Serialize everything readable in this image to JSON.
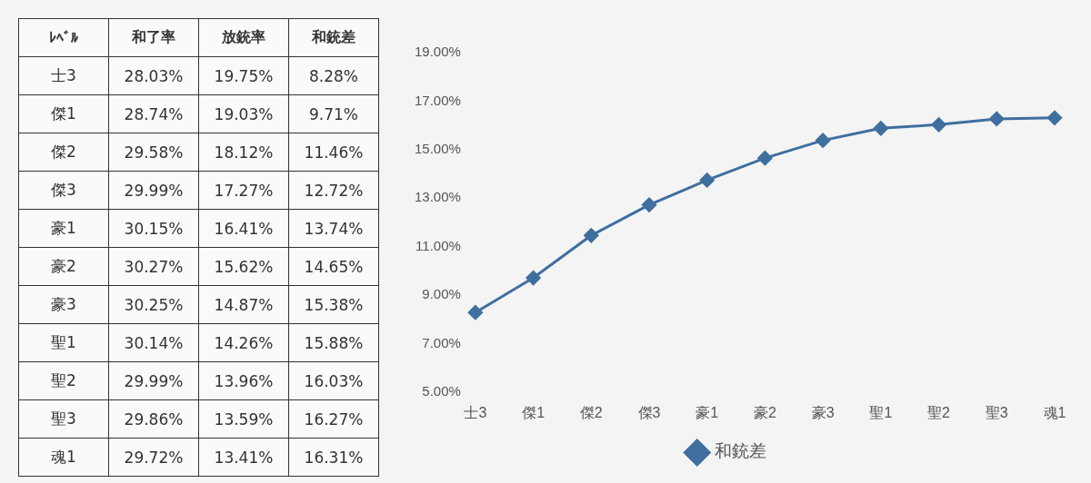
{
  "chart_data": [
    {
      "type": "other",
      "xlabel": "ﾚﾍﾞﾙ",
      "categories": [
        "士3",
        "傑1",
        "傑2",
        "傑3",
        "豪1",
        "豪2",
        "豪3",
        "聖1",
        "聖2",
        "聖3",
        "魂1"
      ],
      "series": [
        {
          "name": "和了率",
          "values": [
            28.03,
            28.74,
            29.58,
            29.99,
            30.15,
            30.27,
            30.25,
            30.14,
            29.99,
            29.86,
            29.72
          ],
          "value_labels": [
            "28.03%",
            "28.74%",
            "29.58%",
            "29.99%",
            "30.15%",
            "30.27%",
            "30.25%",
            "30.14%",
            "29.99%",
            "29.86%",
            "29.72%"
          ]
        },
        {
          "name": "放銃率",
          "values": [
            19.75,
            19.03,
            18.12,
            17.27,
            16.41,
            15.62,
            14.87,
            14.26,
            13.96,
            13.59,
            13.41
          ],
          "value_labels": [
            "19.75%",
            "19.03%",
            "18.12%",
            "17.27%",
            "16.41%",
            "15.62%",
            "14.87%",
            "14.26%",
            "13.96%",
            "13.59%",
            "13.41%"
          ]
        },
        {
          "name": "和銃差",
          "values": [
            8.28,
            9.71,
            11.46,
            12.72,
            13.74,
            14.65,
            15.38,
            15.88,
            16.03,
            16.27,
            16.31
          ],
          "value_labels": [
            "8.28%",
            "9.71%",
            "11.46%",
            "12.72%",
            "13.74%",
            "14.65%",
            "15.38%",
            "15.88%",
            "16.03%",
            "16.27%",
            "16.31%"
          ]
        }
      ]
    },
    {
      "type": "line",
      "categories": [
        "士3",
        "傑1",
        "傑2",
        "傑3",
        "豪1",
        "豪2",
        "豪3",
        "聖1",
        "聖2",
        "聖3",
        "魂1"
      ],
      "series": [
        {
          "name": "和銃差",
          "color": "#3f6f9f",
          "values": [
            8.28,
            9.71,
            11.46,
            12.72,
            13.74,
            14.65,
            15.38,
            15.88,
            16.03,
            16.27,
            16.31
          ]
        }
      ],
      "ylim": [
        5,
        19
      ],
      "yticks": [
        {
          "value": 5,
          "label": "5.00%"
        },
        {
          "value": 7,
          "label": "7.00%"
        },
        {
          "value": 9,
          "label": "9.00%"
        },
        {
          "value": 11,
          "label": "11.00%"
        },
        {
          "value": 13,
          "label": "13.00%"
        },
        {
          "value": 15,
          "label": "15.00%"
        },
        {
          "value": 17,
          "label": "17.00%"
        },
        {
          "value": 19,
          "label": "19.00%"
        }
      ],
      "grid": false,
      "legend": "bottom",
      "marker": "diamond",
      "line_style": "solid"
    }
  ]
}
